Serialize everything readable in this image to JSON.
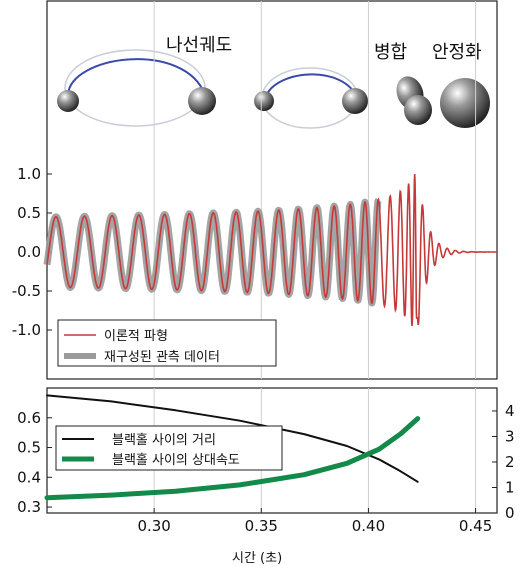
{
  "phase_labels": {
    "inspiral": "나선궤도",
    "merger": "병합",
    "ringdown": "안정화"
  },
  "colors": {
    "theory": "#c43a3a",
    "observed": "#9a9a9a",
    "distance": "#111111",
    "velocity": "#138a4a",
    "orbit": "#3b4aa8"
  },
  "chart_data": [
    {
      "type": "line",
      "panel": "top",
      "title": "",
      "xlabel": "",
      "ylabel": "",
      "xlim": [
        0.25,
        0.46
      ],
      "ylim": [
        -1.45,
        1.45
      ],
      "yticks": [
        1.0,
        0.5,
        0.0,
        -0.5,
        -1.0
      ],
      "ytick_labels": [
        "1.0",
        "0.5",
        "0.0",
        "-0.5",
        "-1.0"
      ],
      "legend_position": "bottom-left",
      "series": [
        {
          "name": "이론적 파형",
          "color": "#c43a3a",
          "style": "thin-line",
          "description_points": {
            "t_start": 0.25,
            "t_merger": 0.423,
            "t_end": 0.46,
            "amp_start": 0.45,
            "amp_peak": 1.0
          }
        },
        {
          "name": "재구성된 관측 데이터",
          "color": "#9a9a9a",
          "style": "thick-line",
          "description_points": {
            "t_start": 0.25,
            "t_end": 0.405
          }
        }
      ]
    },
    {
      "type": "line",
      "panel": "bottom",
      "title": "",
      "xlabel": "시간 (초)",
      "ylabel": "",
      "xlim": [
        0.25,
        0.46
      ],
      "ylim_left": [
        0.28,
        0.7
      ],
      "ylim_right": [
        0,
        4.9
      ],
      "xticks": [
        0.3,
        0.35,
        0.4,
        0.45
      ],
      "xtick_labels": [
        "0.30",
        "0.35",
        "0.40",
        "0.45"
      ],
      "yticks_left": [
        0.6,
        0.5,
        0.4,
        0.3
      ],
      "ytick_labels_left": [
        "0.6",
        "0.5",
        "0.4",
        "0.3"
      ],
      "yticks_right": [
        4,
        3,
        2,
        1,
        0
      ],
      "ytick_labels_right": [
        "4",
        "3",
        "2",
        "1",
        "0"
      ],
      "legend_position": "middle-left",
      "series": [
        {
          "name": "블랙홀 사이의 거리",
          "axis": "left",
          "color": "#111111",
          "x": [
            0.25,
            0.28,
            0.31,
            0.34,
            0.37,
            0.39,
            0.405,
            0.415,
            0.423
          ],
          "y": [
            0.675,
            0.655,
            0.625,
            0.59,
            0.545,
            0.505,
            0.46,
            0.42,
            0.385
          ]
        },
        {
          "name": "블랙홀 사이의 상대속도",
          "axis": "right",
          "color": "#138a4a",
          "x": [
            0.25,
            0.28,
            0.31,
            0.34,
            0.37,
            0.39,
            0.405,
            0.415,
            0.423
          ],
          "y": [
            0.6,
            0.7,
            0.85,
            1.1,
            1.5,
            1.95,
            2.5,
            3.1,
            3.7
          ]
        }
      ]
    }
  ]
}
